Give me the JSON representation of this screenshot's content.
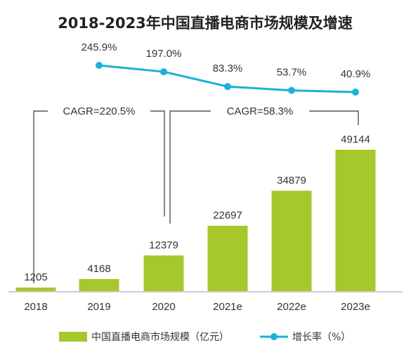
{
  "chart_data": {
    "type": "bar",
    "title": "2018-2023年中国直播电商市场规模及增速",
    "categories": [
      "2018",
      "2019",
      "2020",
      "2021e",
      "2022e",
      "2023e"
    ],
    "series": [
      {
        "name": "中国直播电商市场规模（亿元）",
        "type": "bar",
        "values": [
          1205,
          4168,
          12379,
          22697,
          34879,
          49144
        ],
        "color": "#a6c82a"
      },
      {
        "name": "增长率（%）",
        "type": "line",
        "values": [
          null,
          245.9,
          197.0,
          83.3,
          53.7,
          40.9
        ],
        "labels": [
          "",
          "245.9%",
          "197.0%",
          "83.3%",
          "53.7%",
          "40.9%"
        ],
        "color": "#1ab2d9"
      }
    ],
    "ylim": [
      0,
      49144
    ],
    "annotations": [
      {
        "text": "CAGR=220.5%",
        "from": "2018",
        "to": "2020"
      },
      {
        "text": "CAGR=58.3%",
        "from": "2020",
        "to": "2023e"
      }
    ],
    "legend_position": "bottom",
    "grid": false
  }
}
